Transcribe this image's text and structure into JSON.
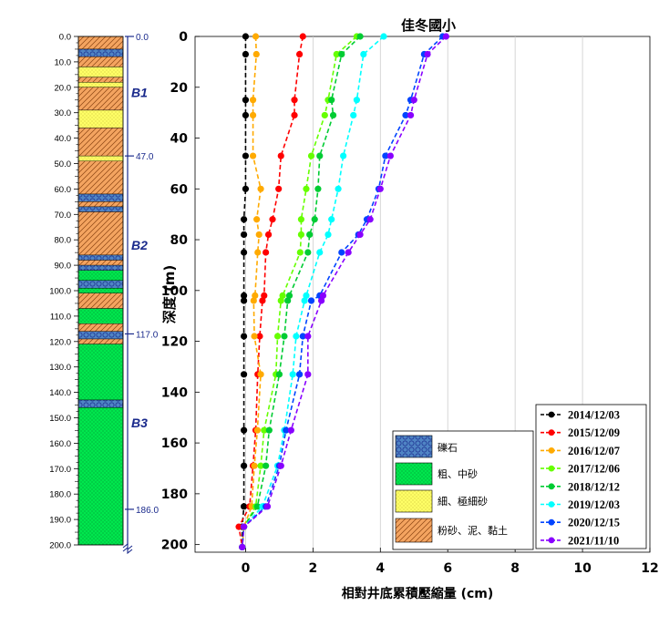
{
  "chart_data": [
    {
      "type": "column",
      "name": "strata-column",
      "depth_ticks": [
        "0.0",
        "10.0",
        "20.0",
        "30.0",
        "40.0",
        "50.0",
        "60.0",
        "70.0",
        "80.0",
        "90.0",
        "100.0",
        "110.0",
        "120.0",
        "130.0",
        "140.0",
        "150.0",
        "160.0",
        "170.0",
        "180.0",
        "190.0",
        "200.0"
      ],
      "ylim": [
        0,
        200
      ],
      "layers": [
        {
          "top": 0,
          "bottom": 5,
          "material": "silt-clay"
        },
        {
          "top": 5,
          "bottom": 8,
          "material": "gravel"
        },
        {
          "top": 8,
          "bottom": 12,
          "material": "silt-clay"
        },
        {
          "top": 12,
          "bottom": 16,
          "material": "fine-sand"
        },
        {
          "top": 16,
          "bottom": 18,
          "material": "silt-clay"
        },
        {
          "top": 18,
          "bottom": 20,
          "material": "fine-sand"
        },
        {
          "top": 20,
          "bottom": 29,
          "material": "silt-clay"
        },
        {
          "top": 29,
          "bottom": 36,
          "material": "fine-sand"
        },
        {
          "top": 36,
          "bottom": 47,
          "material": "silt-clay"
        },
        {
          "top": 47,
          "bottom": 49,
          "material": "fine-sand"
        },
        {
          "top": 49,
          "bottom": 62,
          "material": "silt-clay"
        },
        {
          "top": 62,
          "bottom": 65,
          "material": "gravel"
        },
        {
          "top": 65,
          "bottom": 67,
          "material": "silt-clay"
        },
        {
          "top": 67,
          "bottom": 69,
          "material": "gravel"
        },
        {
          "top": 69,
          "bottom": 86,
          "material": "silt-clay"
        },
        {
          "top": 86,
          "bottom": 88,
          "material": "gravel"
        },
        {
          "top": 88,
          "bottom": 90,
          "material": "silt-clay"
        },
        {
          "top": 90,
          "bottom": 92,
          "material": "gravel"
        },
        {
          "top": 92,
          "bottom": 96,
          "material": "coarse-sand"
        },
        {
          "top": 96,
          "bottom": 99,
          "material": "gravel"
        },
        {
          "top": 99,
          "bottom": 101,
          "material": "coarse-sand"
        },
        {
          "top": 101,
          "bottom": 107,
          "material": "silt-clay"
        },
        {
          "top": 107,
          "bottom": 113,
          "material": "coarse-sand"
        },
        {
          "top": 113,
          "bottom": 116,
          "material": "silt-clay"
        },
        {
          "top": 116,
          "bottom": 119,
          "material": "gravel"
        },
        {
          "top": 119,
          "bottom": 121,
          "material": "silt-clay"
        },
        {
          "top": 121,
          "bottom": 143,
          "material": "coarse-sand"
        },
        {
          "top": 143,
          "bottom": 146,
          "material": "gravel"
        },
        {
          "top": 146,
          "bottom": 200,
          "material": "coarse-sand"
        }
      ],
      "aquifer_labels": [
        {
          "text": "B1",
          "depth": 22
        },
        {
          "text": "B2",
          "depth": 82
        },
        {
          "text": "B3",
          "depth": 152
        }
      ],
      "boundary_marks": [
        {
          "label": "0.0",
          "depth": 0
        },
        {
          "label": "47.0",
          "depth": 47
        },
        {
          "label": "117.0",
          "depth": 117
        },
        {
          "label": "186.0",
          "depth": 186
        }
      ]
    },
    {
      "type": "line",
      "name": "compaction-profile",
      "title": "佳冬國小",
      "xlabel": "相對井底累積壓縮量 (cm)",
      "ylabel": "深度 (m)",
      "xlim": [
        -1.5,
        12
      ],
      "ylim": [
        0,
        203
      ],
      "xticks": [
        0,
        2,
        4,
        6,
        8,
        10,
        12
      ],
      "yticks": [
        0,
        20,
        40,
        60,
        80,
        100,
        120,
        140,
        160,
        180,
        200
      ],
      "grid": "vertical",
      "legend_position": "bottom-right",
      "depths": [
        0,
        7,
        25,
        31,
        47,
        60,
        72,
        78,
        85,
        102,
        104,
        118,
        133,
        155,
        169,
        185,
        193,
        201
      ],
      "series": [
        {
          "name": "2014/12/03",
          "color": "#000000",
          "values": [
            0.0,
            0.0,
            0.0,
            0.0,
            0.0,
            0.0,
            -0.05,
            -0.05,
            -0.05,
            -0.05,
            -0.05,
            -0.05,
            -0.05,
            -0.05,
            -0.05,
            -0.05,
            -0.1,
            -0.1
          ]
        },
        {
          "name": "2015/12/09",
          "color": "#ff0000",
          "values": [
            1.7,
            1.6,
            1.45,
            1.45,
            1.05,
            0.98,
            0.8,
            0.68,
            0.6,
            0.55,
            0.5,
            0.42,
            0.36,
            0.3,
            0.22,
            0.12,
            -0.2,
            -0.1
          ]
        },
        {
          "name": "2016/12/07",
          "color": "#ffaa00",
          "values": [
            0.3,
            0.32,
            0.22,
            0.22,
            0.22,
            0.45,
            0.33,
            0.4,
            0.36,
            0.28,
            0.24,
            0.26,
            0.45,
            0.35,
            0.26,
            0.18,
            -0.05,
            -0.1
          ]
        },
        {
          "name": "2017/12/06",
          "color": "#66ff00",
          "values": [
            3.3,
            2.7,
            2.45,
            2.35,
            1.95,
            1.8,
            1.65,
            1.65,
            1.62,
            1.1,
            1.05,
            0.95,
            0.9,
            0.55,
            0.45,
            0.3,
            -0.05,
            -0.1
          ]
        },
        {
          "name": "2018/12/12",
          "color": "#00cc33",
          "values": [
            3.4,
            2.85,
            2.55,
            2.6,
            2.2,
            2.15,
            2.05,
            1.9,
            1.85,
            1.3,
            1.25,
            1.15,
            1.0,
            0.7,
            0.6,
            0.35,
            -0.05,
            -0.1
          ]
        },
        {
          "name": "2019/12/03",
          "color": "#00ffff",
          "values": [
            4.1,
            3.5,
            3.3,
            3.2,
            2.9,
            2.75,
            2.55,
            2.45,
            2.2,
            1.8,
            1.75,
            1.5,
            1.4,
            1.15,
            0.95,
            0.5,
            -0.05,
            -0.1
          ]
        },
        {
          "name": "2020/12/15",
          "color": "#0044ff",
          "values": [
            5.85,
            5.3,
            4.9,
            4.75,
            4.15,
            3.95,
            3.6,
            3.35,
            2.85,
            2.2,
            1.95,
            1.7,
            1.6,
            1.2,
            1.0,
            0.6,
            -0.05,
            -0.1
          ]
        },
        {
          "name": "2021/11/10",
          "color": "#8800ff",
          "values": [
            5.95,
            5.4,
            5.0,
            4.9,
            4.3,
            4.0,
            3.7,
            3.4,
            3.05,
            2.3,
            2.25,
            1.85,
            1.85,
            1.35,
            1.05,
            0.65,
            -0.05,
            -0.1
          ]
        }
      ]
    }
  ],
  "legend_materials": [
    {
      "key": "gravel",
      "label": "礫石"
    },
    {
      "key": "coarse-sand",
      "label": "粗、中砂"
    },
    {
      "key": "fine-sand",
      "label": "細、極細砂"
    },
    {
      "key": "silt-clay",
      "label": "粉砂、泥、黏土"
    }
  ],
  "colors": {
    "gravel": "#4f84c4",
    "coarse-sand": "#00e64d",
    "fine-sand": "#ffff66",
    "silt-clay": "#f4a460",
    "axis-blue": "#1a2a8c"
  }
}
